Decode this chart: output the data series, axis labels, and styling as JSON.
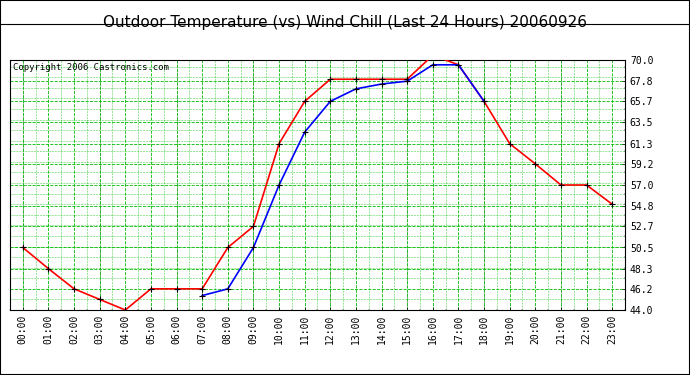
{
  "title": "Outdoor Temperature (vs) Wind Chill (Last 24 Hours) 20060926",
  "copyright_text": "Copyright 2006 Castronics.com",
  "x_labels": [
    "00:00",
    "01:00",
    "02:00",
    "03:00",
    "04:00",
    "05:00",
    "06:00",
    "07:00",
    "08:00",
    "09:00",
    "10:00",
    "11:00",
    "12:00",
    "13:00",
    "14:00",
    "15:00",
    "16:00",
    "17:00",
    "18:00",
    "19:00",
    "20:00",
    "21:00",
    "22:00",
    "23:00"
  ],
  "temp_red": [
    50.5,
    48.3,
    46.2,
    45.1,
    44.0,
    46.2,
    46.2,
    46.2,
    50.5,
    52.7,
    61.3,
    65.7,
    68.0,
    68.0,
    68.0,
    68.0,
    70.5,
    69.5,
    65.7,
    61.3,
    59.2,
    57.0,
    57.0,
    55.0
  ],
  "wind_blue": [
    null,
    null,
    null,
    null,
    null,
    null,
    null,
    45.5,
    46.2,
    50.5,
    57.0,
    62.5,
    65.7,
    67.0,
    67.5,
    67.8,
    69.5,
    69.5,
    65.7,
    null,
    null,
    null,
    null,
    null
  ],
  "ylim": [
    44.0,
    70.0
  ],
  "yticks": [
    44.0,
    46.2,
    48.3,
    50.5,
    52.7,
    54.8,
    57.0,
    59.2,
    61.3,
    63.5,
    65.7,
    67.8,
    70.0
  ],
  "bg_color": "#ffffff",
  "plot_bg_color": "#ffffff",
  "grid_color_major": "#00bb00",
  "line_color_red": "#ff0000",
  "line_color_blue": "#0000ff",
  "marker_color": "#000000",
  "title_fontsize": 11,
  "axis_fontsize": 7,
  "copyright_fontsize": 6.5
}
